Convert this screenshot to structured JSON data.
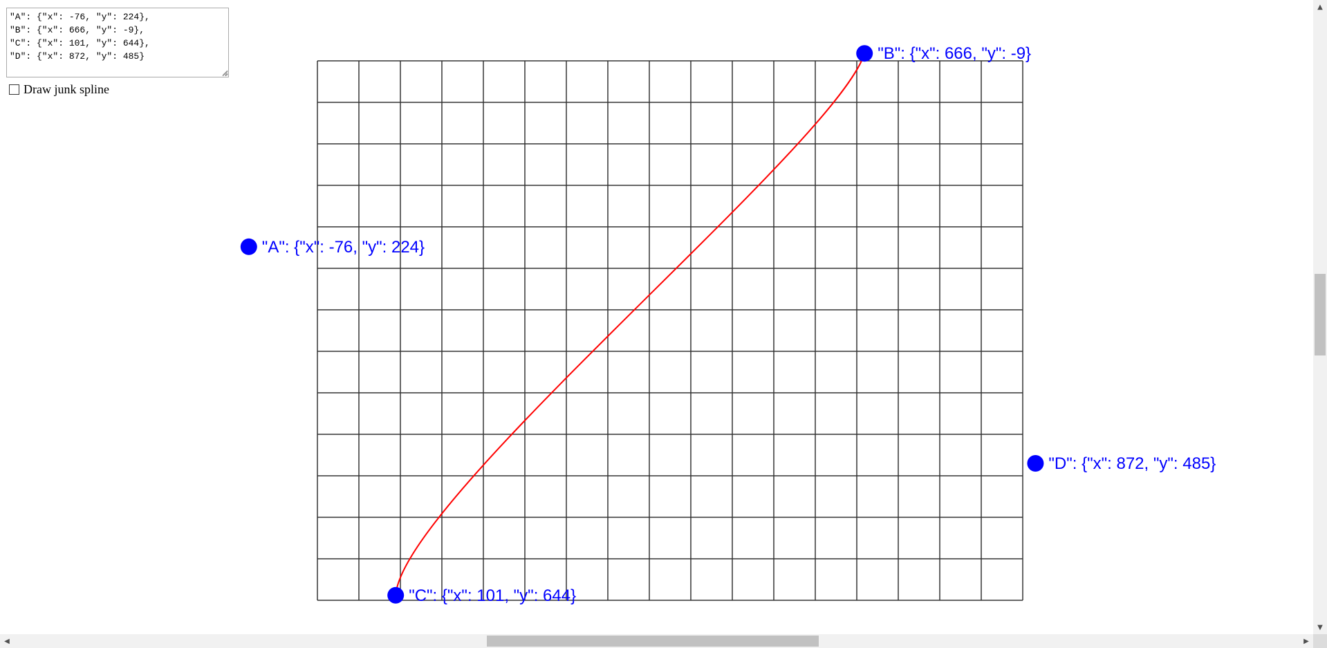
{
  "textarea": {
    "value": "\"A\": {\"x\": -76, \"y\": 224},\n\"B\": {\"x\": 666, \"y\": -9},\n\"C\": {\"x\": 101, \"y\": 644},\n\"D\": {\"x\": 872, \"y\": 485}"
  },
  "checkbox": {
    "label": "Draw junk spline",
    "checked": false
  },
  "points": [
    {
      "name": "A",
      "x": -76,
      "y": 224,
      "label": "\"A\": {\"x\": -76, \"y\": 224}"
    },
    {
      "name": "B",
      "x": 666,
      "y": -9,
      "label": "\"B\": {\"x\": 666, \"y\": -9}"
    },
    {
      "name": "C",
      "x": 101,
      "y": 644,
      "label": "\"C\": {\"x\": 101, \"y\": 644}"
    },
    {
      "name": "D",
      "x": 872,
      "y": 485,
      "label": "\"D\": {\"x\": 872, \"y\": 485}"
    }
  ],
  "grid": {
    "columns": 17,
    "rows": 13
  },
  "colors": {
    "point": "#0000ff",
    "label": "#0000ff",
    "curve": "#ff0000",
    "grid": "#333333"
  },
  "scrollbar": {
    "left_arrow": "◀",
    "right_arrow": "▶",
    "up_arrow": "▲",
    "down_arrow": "▼"
  }
}
